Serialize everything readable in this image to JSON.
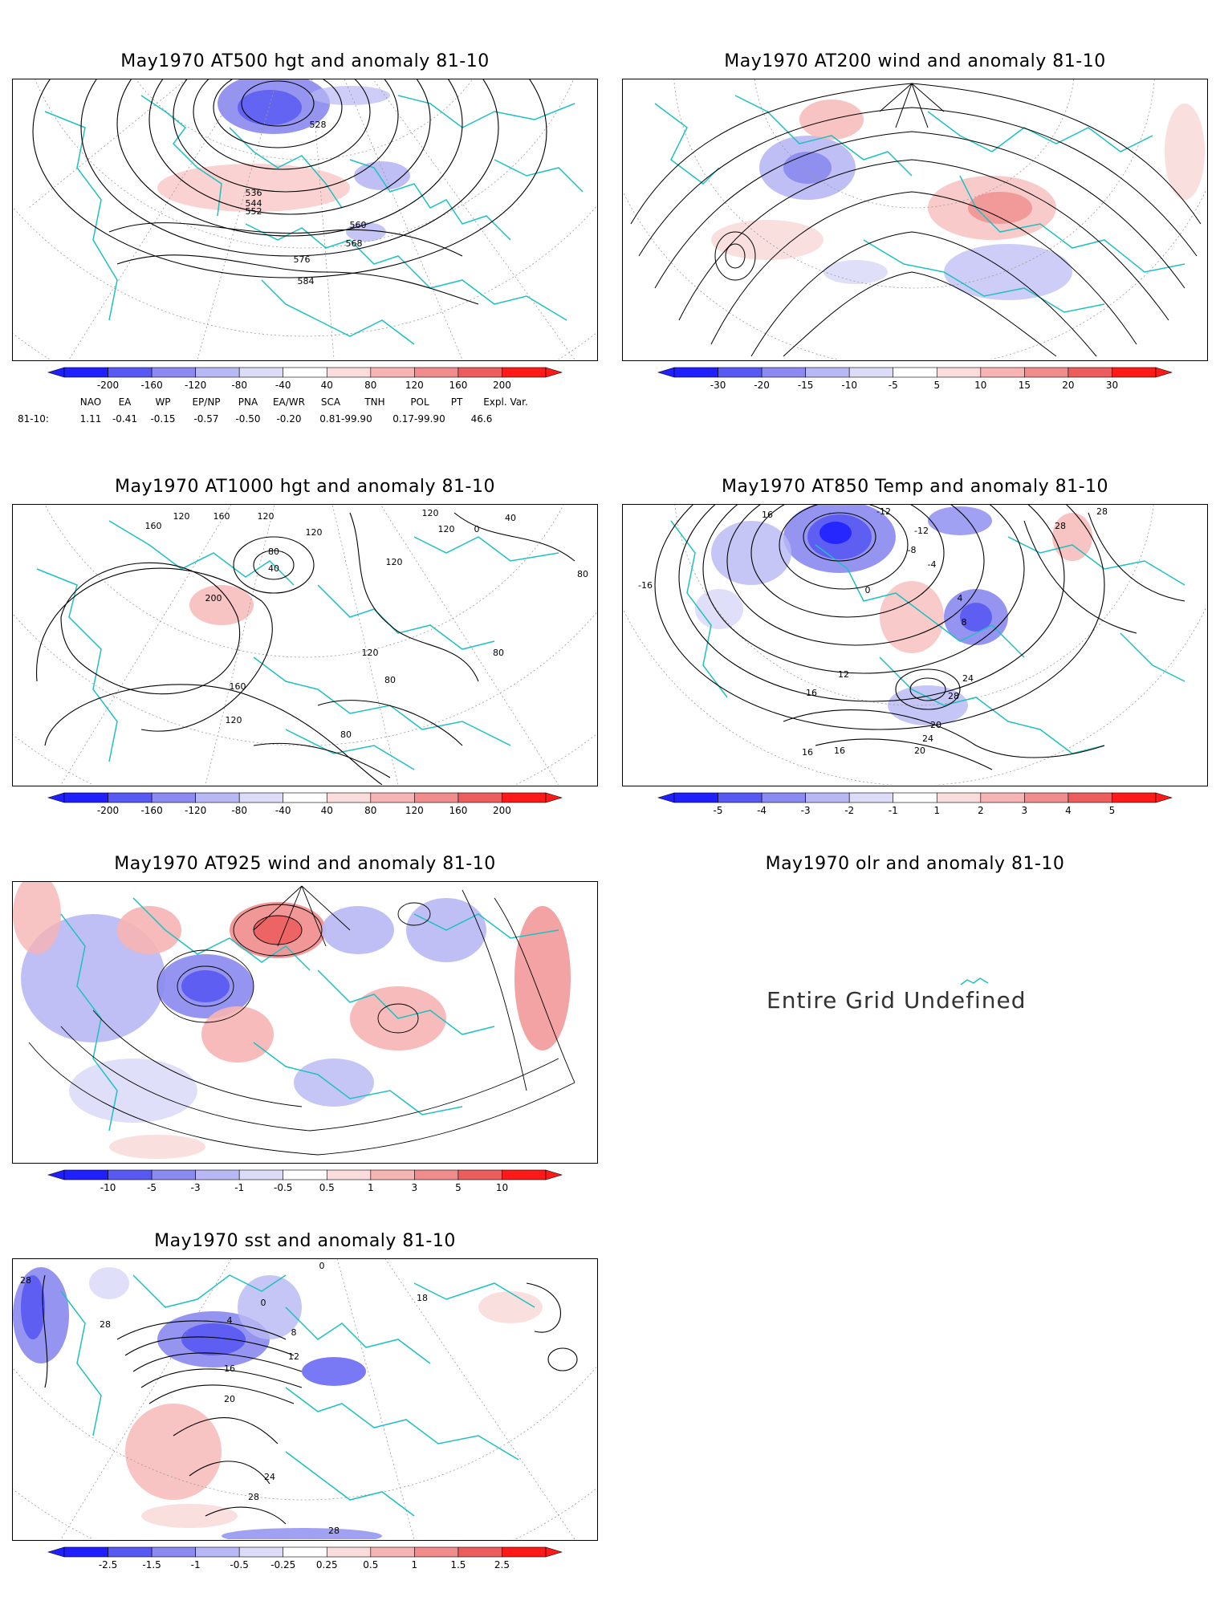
{
  "colors": {
    "coast": "#20c0c0",
    "contour": "#000000",
    "grid": "#9a9a9a",
    "blue_scale": [
      "#2020ff",
      "#5858f2",
      "#8a8af0",
      "#b8b8f4",
      "#dcdcf8"
    ],
    "red_scale": [
      "#fadcdc",
      "#f6b4b4",
      "#f08c8c",
      "#ec5e5e",
      "#ff1a1a"
    ]
  },
  "panels": [
    {
      "id": "z500",
      "title": "May1970 AT500 hgt and anomaly 81-10",
      "contour_labels": [
        "528",
        "536",
        "544",
        "552",
        "560",
        "568",
        "576",
        "584"
      ],
      "colorbar": [
        "-200",
        "-160",
        "-120",
        "-80",
        "-40",
        "40",
        "80",
        "120",
        "160",
        "200"
      ]
    },
    {
      "id": "u200",
      "title": "May1970 AT200 wind and anomaly 81-10",
      "contour_labels": [],
      "colorbar": [
        "-30",
        "-20",
        "-15",
        "-10",
        "-5",
        "5",
        "10",
        "15",
        "20",
        "30"
      ]
    },
    {
      "id": "z1000",
      "title": "May1970 AT1000 hgt and anomaly 81-10",
      "contour_labels": [
        "160",
        "120",
        "160",
        "120",
        "120",
        "120",
        "120",
        "0",
        "40",
        "80",
        "40",
        "120",
        "200",
        "160",
        "120",
        "120",
        "80",
        "80",
        "80",
        "80"
      ],
      "colorbar": [
        "-200",
        "-160",
        "-120",
        "-80",
        "-40",
        "40",
        "80",
        "120",
        "160",
        "200"
      ]
    },
    {
      "id": "t850",
      "title": "May1970 AT850 Temp and anomaly 81-10",
      "contour_labels": [
        "16",
        "-16",
        "-12",
        "-12",
        "-8",
        "-4",
        "0",
        "4",
        "8",
        "12",
        "16",
        "24",
        "28",
        "20",
        "24",
        "20",
        "28",
        "28",
        "16",
        "16"
      ],
      "colorbar": [
        "-5",
        "-4",
        "-3",
        "-2",
        "-1",
        "1",
        "2",
        "3",
        "4",
        "5"
      ]
    },
    {
      "id": "u925",
      "title": "May1970 AT925 wind and anomaly 81-10",
      "contour_labels": [],
      "colorbar": [
        "-10",
        "-5",
        "-3",
        "-1",
        "-0.5",
        "0.5",
        "1",
        "3",
        "5",
        "10"
      ]
    },
    {
      "id": "olr",
      "title": "May1970 olr and anomaly 81-10",
      "message": "Entire Grid Undefined"
    },
    {
      "id": "sst",
      "title": "May1970 sst and anomaly 81-10",
      "contour_labels": [
        "28",
        "28",
        "0",
        "4",
        "8",
        "12",
        "16",
        "20",
        "24",
        "28",
        "28",
        "0",
        "18"
      ],
      "colorbar": [
        "-2.5",
        "-1.5",
        "-1",
        "-0.5",
        "-0.25",
        "0.25",
        "0.5",
        "1",
        "1.5",
        "2.5"
      ]
    }
  ],
  "teleconnections": {
    "row_label": "81-10:",
    "headers": [
      "NAO",
      "EA",
      "WP",
      "EP/NP",
      "PNA",
      "EA/WR",
      "SCA",
      "TNH",
      "POL",
      "PT",
      "Expl. Var."
    ],
    "values": [
      "1.11",
      "-0.41",
      "-0.15",
      "-0.57",
      "-0.50",
      "-0.20",
      "0.81-99.90",
      "0.17-99.90",
      "46.6"
    ]
  }
}
